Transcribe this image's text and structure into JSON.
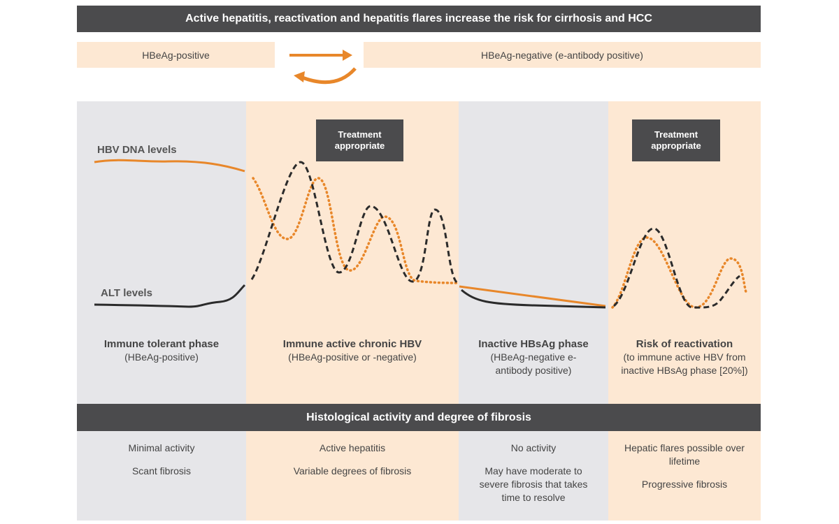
{
  "top_banner": "Active hepatitis, reactivation and hepatitis flares increase the risk for cirrhosis and HCC",
  "status_row": {
    "left": "HBeAg-positive",
    "right": "HBeAg-negative (e-antibody positive)"
  },
  "curve_labels": {
    "hbv_dna": "HBV DNA levels",
    "alt": "ALT levels"
  },
  "treatment_label": "Treatment appropriate",
  "phases": [
    {
      "title": "Immune tolerant phase",
      "sub": "(HBeAg-positive)"
    },
    {
      "title": "Immune active chronic HBV",
      "sub": "(HBeAg-positive or -negative)"
    },
    {
      "title": "Inactive HBsAg phase",
      "sub": "(HBeAg-negative e-antibody positive)"
    },
    {
      "title": "Risk of reactivation",
      "sub": "(to immune active HBV from inactive HBsAg phase [20%])"
    }
  ],
  "histology_banner": "Histological activity and degree of fibrosis",
  "histology": [
    {
      "activity": "Minimal activity",
      "fibrosis": "Scant fibrosis"
    },
    {
      "activity": "Active hepatitis",
      "fibrosis": "Variable degrees of fibrosis"
    },
    {
      "activity": "No activity",
      "fibrosis": "May have moderate to severe fibrosis that takes time to resolve"
    },
    {
      "activity": "Hepatic flares possible over lifetime",
      "fibrosis": "Progressive fibrosis"
    }
  ],
  "colors": {
    "dark": "#4b4b4d",
    "peach": "#fde8d3",
    "gray": "#e6e6e9",
    "orange": "#e8872a",
    "black": "#2b2b2b"
  }
}
